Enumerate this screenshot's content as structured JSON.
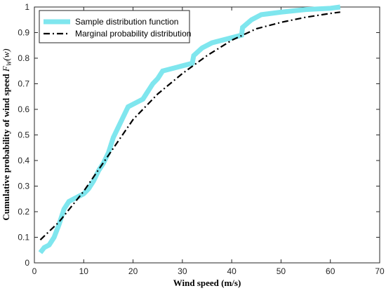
{
  "chart_data": {
    "type": "line",
    "title": "",
    "xlabel": "Wind speed (m/s)",
    "ylabel_main": "Cumulative probability of wind speed ",
    "ylabel_math_symbol": "F",
    "ylabel_math_subscript": "W",
    "ylabel_math_arg": "(w)",
    "xlim": [
      0,
      70
    ],
    "ylim": [
      0,
      1
    ],
    "xticks": [
      0,
      10,
      20,
      30,
      40,
      50,
      60,
      70
    ],
    "xtick_labels": [
      "0",
      "10",
      "20",
      "30",
      "40",
      "50",
      "60",
      "70"
    ],
    "yticks": [
      0,
      0.1,
      0.2,
      0.3,
      0.4,
      0.5,
      0.6,
      0.7,
      0.8,
      0.9,
      1
    ],
    "ytick_labels": [
      "0",
      "0.1",
      "0.2",
      "0.3",
      "0.4",
      "0.5",
      "0.6",
      "0.7",
      "0.8",
      "0.9",
      "1"
    ],
    "grid": false,
    "legend_position": "top-left",
    "series": [
      {
        "name": "Sample distribution function",
        "color": "#7fe6ee",
        "style": "solid-thick",
        "x": [
          1.2,
          2,
          3,
          4,
          5,
          6,
          7,
          8,
          9,
          10,
          11,
          12,
          13,
          14,
          15,
          16,
          17,
          18,
          19,
          21,
          22,
          23,
          24,
          25,
          26,
          28,
          30,
          32,
          32.3,
          34,
          36,
          38,
          40,
          42,
          42.2,
          44,
          46,
          50,
          55,
          60,
          62
        ],
        "y": [
          0.04,
          0.06,
          0.07,
          0.1,
          0.15,
          0.21,
          0.24,
          0.25,
          0.26,
          0.27,
          0.29,
          0.32,
          0.36,
          0.39,
          0.43,
          0.49,
          0.53,
          0.57,
          0.61,
          0.63,
          0.64,
          0.67,
          0.7,
          0.72,
          0.75,
          0.76,
          0.77,
          0.78,
          0.81,
          0.84,
          0.86,
          0.87,
          0.88,
          0.89,
          0.92,
          0.95,
          0.97,
          0.98,
          0.99,
          0.995,
          1.0
        ]
      },
      {
        "name": "Marginal probability distribution",
        "color": "#000000",
        "style": "dash-dot",
        "x": [
          1.2,
          5,
          10,
          15,
          20,
          25,
          30,
          35,
          40,
          45,
          50,
          55,
          60,
          62
        ],
        "y": [
          0.09,
          0.16,
          0.28,
          0.42,
          0.56,
          0.66,
          0.74,
          0.81,
          0.87,
          0.915,
          0.94,
          0.96,
          0.975,
          0.98
        ]
      }
    ]
  }
}
